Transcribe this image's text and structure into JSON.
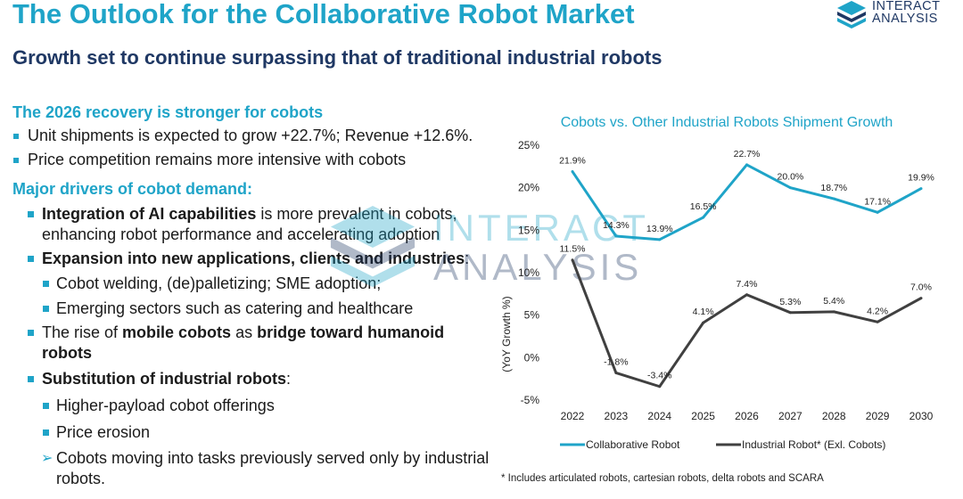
{
  "header": {
    "title": "The Outlook for the Collaborative Robot Market",
    "subtitle": "Growth set to continue surpassing that of traditional industrial robots"
  },
  "logo": {
    "line1": "INTERACT",
    "line2": "ANALYSIS"
  },
  "watermark": {
    "line1": "INTERACT",
    "line2": "ANALYSIS"
  },
  "recovery": {
    "heading": "The 2026 recovery is stronger for cobots",
    "bullets": [
      "Unit shipments is expected to grow +22.7%; Revenue +12.6%.",
      "Price competition remains more intensive with cobots"
    ]
  },
  "drivers": {
    "heading": "Major drivers of cobot demand:",
    "ai_bold": "Integration of AI capabilities",
    "ai_rest": " is more prevalent in cobots, enhancing robot performance and accelerating adoption",
    "expansion_bold": "Expansion into new applications, clients and industries",
    "expansion_rest": ":",
    "expansion_sub": [
      "Cobot welding, (de)palletizing; SME adoption;",
      "Emerging sectors such as catering and healthcare"
    ],
    "mobile_pre": "The rise of ",
    "mobile_bold1": "mobile cobots",
    "mobile_mid": " as ",
    "mobile_bold2": "bridge toward humanoid robots",
    "substitution_bold": "Substitution of industrial robots",
    "substitution_rest": ":",
    "substitution_sub": [
      "Higher-payload cobot offerings",
      "Price erosion"
    ],
    "substitution_arrow": "Cobots moving into tasks previously served only by industrial robots."
  },
  "chart_data": {
    "type": "line",
    "title": "Cobots vs. Other Industrial Robots Shipment Growth",
    "ylabel": "(YoY Growth %)",
    "xlabel": "",
    "x": [
      "2022",
      "2023",
      "2024",
      "2025",
      "2026",
      "2027",
      "2028",
      "2029",
      "2030"
    ],
    "ylim": [
      -5,
      25
    ],
    "yticks": [
      -5,
      0,
      5,
      10,
      15,
      20,
      25
    ],
    "ytick_labels": [
      "-5%",
      "0%",
      "5%",
      "10%",
      "15%",
      "20%",
      "25%"
    ],
    "grid": false,
    "legend_position": "bottom",
    "series": [
      {
        "name": "Collaborative Robot",
        "color": "#1fa4c8",
        "values": [
          21.9,
          14.3,
          13.9,
          16.5,
          22.7,
          20.0,
          18.7,
          17.1,
          19.9
        ],
        "labels": [
          "21.9%",
          "14.3%",
          "13.9%",
          "16.5%",
          "22.7%",
          "20.0%",
          "18.7%",
          "17.1%",
          "19.9%"
        ]
      },
      {
        "name": "Industrial Robot* (Exl. Cobots)",
        "color": "#404040",
        "values": [
          11.5,
          -1.8,
          -3.4,
          4.1,
          7.4,
          5.3,
          5.4,
          4.2,
          7.0
        ],
        "labels": [
          "11.5%",
          "-1.8%",
          "-3.4%",
          "4.1%",
          "7.4%",
          "5.3%",
          "5.4%",
          "4.2%",
          "7.0%"
        ]
      }
    ]
  },
  "footnote": "* Includes articulated robots, cartesian robots, delta robots and SCARA"
}
